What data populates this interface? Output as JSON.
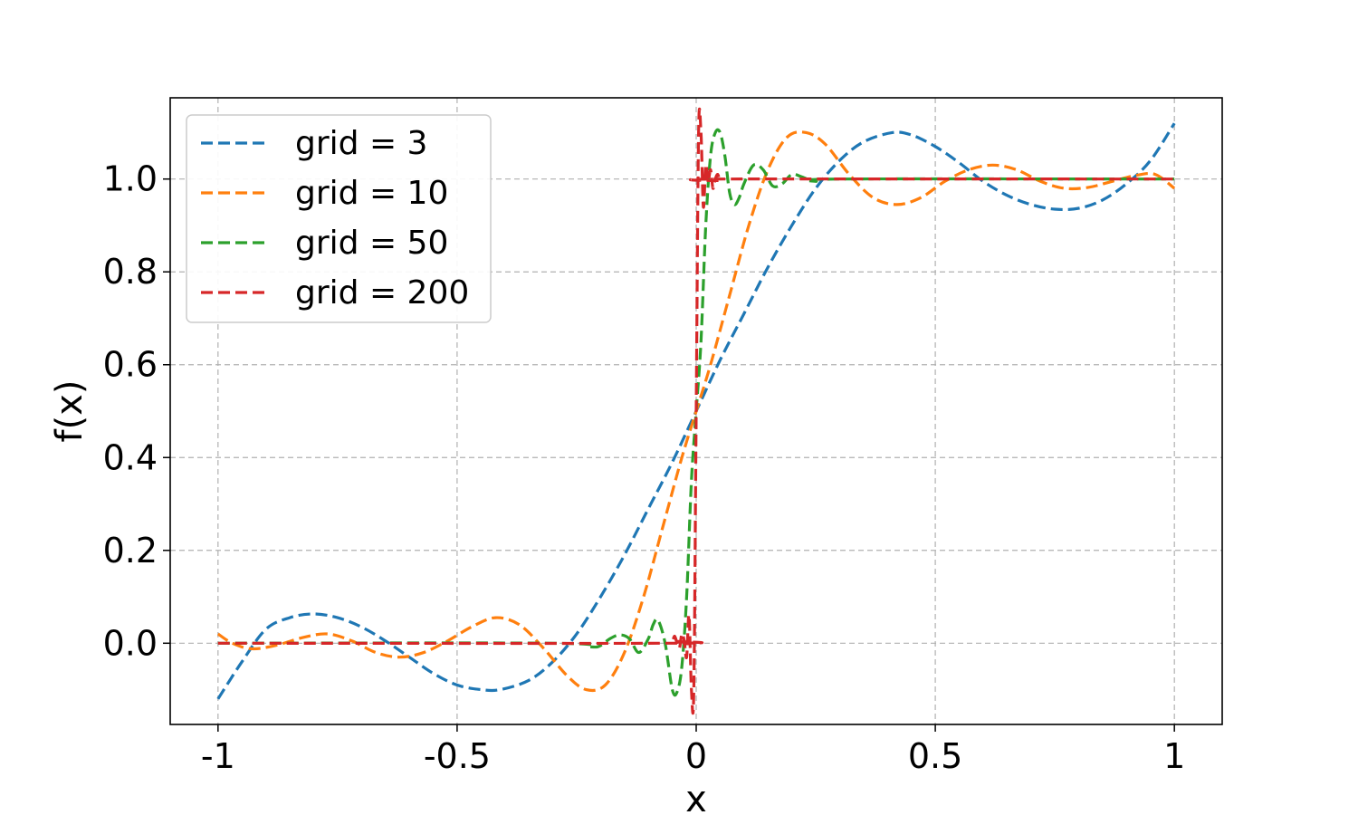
{
  "chart_data": {
    "type": "line",
    "title": "",
    "xlabel": "x",
    "ylabel": "f(x)",
    "xlim": [
      -1.1,
      1.1
    ],
    "ylim": [
      -0.175,
      1.175
    ],
    "grid": true,
    "legend_position": "top-left",
    "x_ticks": [
      {
        "value": -1,
        "label": "-1"
      },
      {
        "value": -0.5,
        "label": "-0.5"
      },
      {
        "value": 0,
        "label": "0"
      },
      {
        "value": 0.5,
        "label": "0.5"
      },
      {
        "value": 1,
        "label": "1"
      }
    ],
    "y_ticks": [
      {
        "value": 0,
        "label": "0.0"
      },
      {
        "value": 0.2,
        "label": "0.2"
      },
      {
        "value": 0.4,
        "label": "0.4"
      },
      {
        "value": 0.6,
        "label": "0.6"
      },
      {
        "value": 0.8,
        "label": "0.8"
      },
      {
        "value": 1.0,
        "label": "1.0"
      }
    ],
    "series": [
      {
        "name": "grid = 3",
        "color": "#1f77b4",
        "x": [
          -1.0,
          -0.95,
          -0.9,
          -0.85,
          -0.8,
          -0.75,
          -0.7,
          -0.65,
          -0.6,
          -0.55,
          -0.5,
          -0.45,
          -0.41,
          -0.35,
          -0.3,
          -0.25,
          -0.2,
          -0.15,
          -0.1,
          -0.05,
          0.0,
          0.05,
          0.1,
          0.15,
          0.2,
          0.25,
          0.3,
          0.35,
          0.41,
          0.45,
          0.5,
          0.55,
          0.6,
          0.65,
          0.7,
          0.75,
          0.8,
          0.85,
          0.9,
          0.95,
          1.0
        ],
        "y": [
          -0.12,
          -0.04,
          0.03,
          0.055,
          0.063,
          0.055,
          0.035,
          0.005,
          -0.03,
          -0.065,
          -0.09,
          -0.1,
          -0.1,
          -0.08,
          -0.04,
          0.02,
          0.1,
          0.19,
          0.29,
          0.39,
          0.5,
          0.61,
          0.71,
          0.81,
          0.9,
          0.98,
          1.04,
          1.08,
          1.1,
          1.095,
          1.07,
          1.035,
          0.995,
          0.965,
          0.945,
          0.935,
          0.937,
          0.955,
          0.99,
          1.04,
          1.12
        ]
      },
      {
        "name": "grid = 10",
        "color": "#ff7f0e",
        "x": [
          -1.0,
          -0.97,
          -0.93,
          -0.88,
          -0.82,
          -0.77,
          -0.72,
          -0.67,
          -0.62,
          -0.57,
          -0.52,
          -0.47,
          -0.42,
          -0.37,
          -0.32,
          -0.27,
          -0.23,
          -0.19,
          -0.15,
          -0.11,
          -0.07,
          -0.03,
          0.0,
          0.03,
          0.07,
          0.11,
          0.15,
          0.19,
          0.23,
          0.27,
          0.32,
          0.37,
          0.42,
          0.47,
          0.52,
          0.57,
          0.62,
          0.67,
          0.72,
          0.77,
          0.82,
          0.87,
          0.92,
          0.96,
          1.0
        ],
        "y": [
          0.02,
          0.0,
          -0.012,
          -0.005,
          0.013,
          0.02,
          0.005,
          -0.02,
          -0.03,
          -0.02,
          0.005,
          0.035,
          0.055,
          0.04,
          -0.01,
          -0.07,
          -0.1,
          -0.09,
          -0.02,
          0.1,
          0.25,
          0.4,
          0.5,
          0.6,
          0.75,
          0.9,
          1.02,
          1.09,
          1.1,
          1.075,
          1.01,
          0.96,
          0.945,
          0.96,
          0.995,
          1.02,
          1.03,
          1.02,
          0.995,
          0.98,
          0.982,
          0.995,
          1.008,
          1.01,
          0.98
        ]
      },
      {
        "name": "grid = 50",
        "color": "#2ca02c",
        "x": [
          -1.0,
          -0.3,
          -0.22,
          -0.2,
          -0.18,
          -0.16,
          -0.14,
          -0.12,
          -0.1,
          -0.09,
          -0.08,
          -0.065,
          -0.05,
          -0.04,
          -0.03,
          -0.02,
          -0.01,
          0.0,
          0.01,
          0.02,
          0.03,
          0.04,
          0.05,
          0.06,
          0.07,
          0.08,
          0.09,
          0.1,
          0.12,
          0.14,
          0.16,
          0.18,
          0.2,
          0.22,
          0.25,
          0.3,
          1.0
        ],
        "y": [
          0.0,
          0.0,
          -0.008,
          -0.005,
          0.01,
          0.018,
          0.01,
          -0.02,
          0.01,
          0.04,
          0.05,
          0.0,
          -0.1,
          -0.105,
          -0.05,
          0.1,
          0.35,
          0.5,
          0.65,
          0.9,
          1.05,
          1.1,
          1.1,
          1.05,
          0.97,
          0.945,
          0.96,
          0.99,
          1.03,
          1.02,
          0.985,
          0.99,
          1.01,
          1.005,
          0.995,
          1.0,
          1.0
        ]
      },
      {
        "name": "grid = 200",
        "color": "#d62728",
        "x": [
          -1.0,
          -0.06,
          -0.05,
          -0.045,
          -0.04,
          -0.035,
          -0.03,
          -0.025,
          -0.02,
          -0.015,
          -0.01,
          -0.005,
          0.0,
          0.005,
          0.01,
          0.015,
          0.02,
          0.025,
          0.03,
          0.035,
          0.04,
          0.045,
          0.05,
          0.06,
          1.0
        ],
        "y": [
          0.0,
          0.0,
          0.005,
          0.015,
          0.0,
          -0.01,
          0.02,
          0.005,
          -0.03,
          0.06,
          -0.1,
          -0.1,
          0.5,
          1.1,
          1.1,
          0.94,
          1.03,
          0.995,
          1.02,
          0.98,
          1.0,
          1.01,
          0.997,
          1.0,
          1.0
        ]
      }
    ]
  }
}
